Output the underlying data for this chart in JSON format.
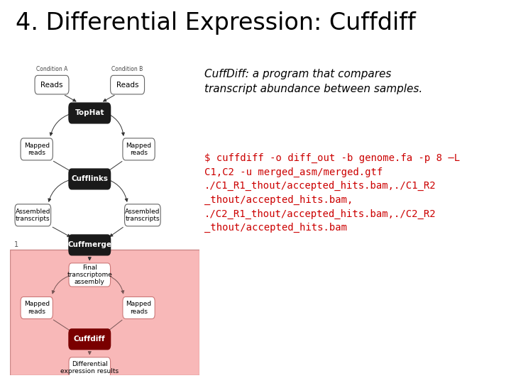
{
  "title": "4. Differential Expression: Cuffdiff",
  "title_fontsize": 24,
  "title_color": "#000000",
  "description_italic": "CuffDiff: a program that compares\ntranscript abundance between samples.",
  "description_fontsize": 11,
  "description_color": "#000000",
  "command_text": "$ cuffdiff -o diff_out -b genome.fa -p 8 –L\nC1,C2 -u merged_asm/merged.gtf\n./C1_R1_thout/accepted_hits.bam,./C1_R2\n_thout/accepted_hits.bam,\n./C2_R1_thout/accepted_hits.bam,./C2_R2\n_thout/accepted_hits.bam",
  "command_fontsize": 10,
  "command_color": "#cc0000",
  "bg_color": "#ffffff",
  "pink_bg": "#f8b8b8",
  "dark_red_box": "#7a0000",
  "black_box": "#1a1a1a",
  "white_box_border": "#666666",
  "pink_box_border": "#cc7777",
  "cond_a_label": "Condition A",
  "cond_b_label": "Condition B"
}
